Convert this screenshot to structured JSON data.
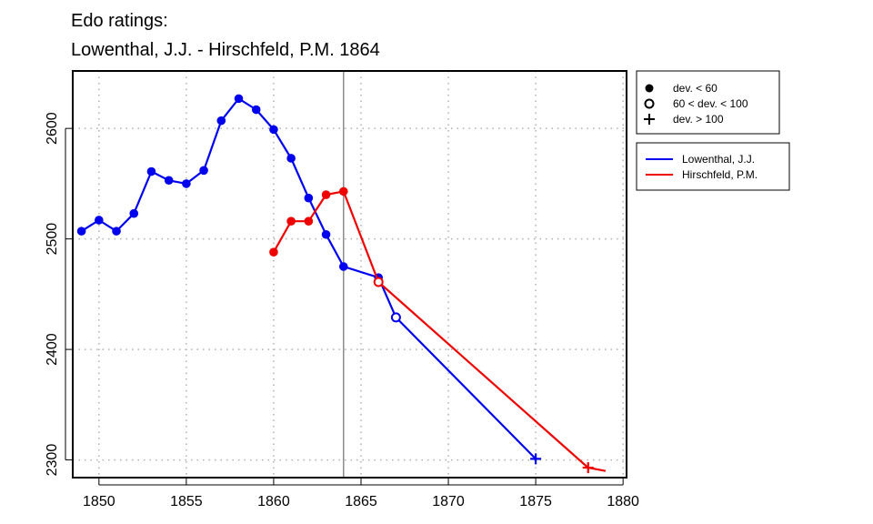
{
  "chart_data": {
    "type": "line",
    "title": [
      "Edo ratings:",
      "Lowenthal, J.J. - Hirschfeld, P.M. 1864"
    ],
    "xlabel": "",
    "ylabel": "",
    "xlim": [
      1848.5,
      1880.2
    ],
    "ylim": [
      2284,
      2652
    ],
    "x_ticks": [
      1850,
      1855,
      1860,
      1865,
      1870,
      1875,
      1880
    ],
    "y_ticks": [
      2300,
      2400,
      2500,
      2600
    ],
    "grid": true,
    "reference_line_x": 1864,
    "marker_legend": {
      "placement": "top-right outside plot",
      "entries": [
        {
          "marker": "filled-circle",
          "label": "dev. < 60"
        },
        {
          "marker": "open-circle",
          "label": "60 < dev. < 100"
        },
        {
          "marker": "plus",
          "label": "dev. > 100"
        }
      ]
    },
    "series": [
      {
        "name": "Lowenthal, J.J.",
        "color": "#0000ee",
        "points": [
          {
            "x": 1849,
            "y": 2507,
            "m": "filled-circle"
          },
          {
            "x": 1850,
            "y": 2517,
            "m": "filled-circle"
          },
          {
            "x": 1851,
            "y": 2507,
            "m": "filled-circle"
          },
          {
            "x": 1852,
            "y": 2523,
            "m": "filled-circle"
          },
          {
            "x": 1853,
            "y": 2561,
            "m": "filled-circle"
          },
          {
            "x": 1854,
            "y": 2553,
            "m": "filled-circle"
          },
          {
            "x": 1855,
            "y": 2550,
            "m": "filled-circle"
          },
          {
            "x": 1856,
            "y": 2562,
            "m": "filled-circle"
          },
          {
            "x": 1857,
            "y": 2607,
            "m": "filled-circle"
          },
          {
            "x": 1858,
            "y": 2627,
            "m": "filled-circle"
          },
          {
            "x": 1859,
            "y": 2617,
            "m": "filled-circle"
          },
          {
            "x": 1860,
            "y": 2599,
            "m": "filled-circle"
          },
          {
            "x": 1861,
            "y": 2573,
            "m": "filled-circle"
          },
          {
            "x": 1862,
            "y": 2537,
            "m": "filled-circle"
          },
          {
            "x": 1863,
            "y": 2504,
            "m": "filled-circle"
          },
          {
            "x": 1864,
            "y": 2475,
            "m": "filled-circle"
          },
          {
            "x": 1866,
            "y": 2465,
            "m": "filled-circle"
          },
          {
            "x": 1867,
            "y": 2429,
            "m": "open-circle"
          },
          {
            "x": 1875,
            "y": 2301,
            "m": "plus"
          }
        ]
      },
      {
        "name": "Hirschfeld, P.M.",
        "color": "#ee0000",
        "points": [
          {
            "x": 1860,
            "y": 2488,
            "m": "filled-circle"
          },
          {
            "x": 1861,
            "y": 2516,
            "m": "filled-circle"
          },
          {
            "x": 1862,
            "y": 2516,
            "m": "filled-circle"
          },
          {
            "x": 1863,
            "y": 2540,
            "m": "filled-circle"
          },
          {
            "x": 1864,
            "y": 2543,
            "m": "filled-circle"
          },
          {
            "x": 1866,
            "y": 2461,
            "m": "open-circle"
          },
          {
            "x": 1878,
            "y": 2293,
            "m": "plus"
          },
          {
            "x": 1879,
            "y": 2290,
            "m": "none"
          }
        ]
      }
    ]
  }
}
